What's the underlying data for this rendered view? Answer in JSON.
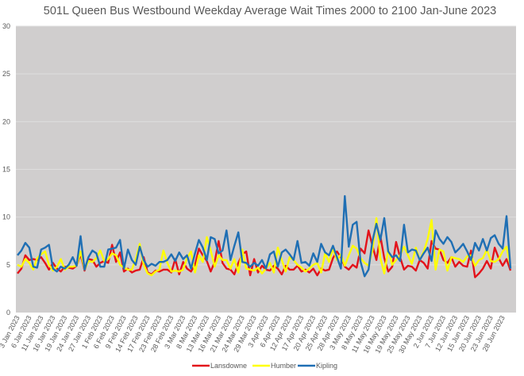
{
  "chart_data": {
    "type": "line",
    "title": "501L Queen Bus Westbound Weekday Average Wait Times 2000 to 2100 Jan-June 2023",
    "xlabel": "",
    "ylabel": "",
    "ylim": [
      0,
      30
    ],
    "yticks": [
      "0",
      "5",
      "10",
      "15",
      "20",
      "25",
      "30"
    ],
    "grid": true,
    "legend": "bottom",
    "label_every": 3,
    "x_tick_labels": [
      "3 Jan 2023",
      "6 Jan 2023",
      "11 Jan 2023",
      "16 Jan 2023",
      "19 Jan 2023",
      "24 Jan 2023",
      "27 Jan 2023",
      "1 Feb 2023",
      "6 Feb 2023",
      "9 Feb 2023",
      "14 Feb 2023",
      "17 Feb 2023",
      "23 Feb 2023",
      "28 Feb 2023",
      "3 Mar 2023",
      "8 Mar 2023",
      "13 Mar 2023",
      "16 Mar 2023",
      "21 Mar 2023",
      "24 Mar 2023",
      "29 Mar 2023",
      "3 Apr 2023",
      "6 Apr 2023",
      "12 Apr 2023",
      "17 Apr 2023",
      "20 Apr 2023",
      "25 Apr 2023",
      "28 Apr 2023",
      "3 May 2023",
      "8 May 2023",
      "11 May 2023",
      "16 May 2023",
      "19 May 2023",
      "25 May 2023",
      "30 May 2023",
      "2 Jun 2023",
      "7 Jun 2023",
      "12 Jun 2023",
      "15 Jun 2023",
      "20 Jun 2023",
      "23 Jun 2023",
      "28 Jun 2023"
    ],
    "series": [
      {
        "name": "Lansdowne",
        "color": "#e3131b",
        "values": [
          4.1,
          4.6,
          6.0,
          5.5,
          5.6,
          5.5,
          5.8,
          5.2,
          4.5,
          5.2,
          4.6,
          4.3,
          4.8,
          4.7,
          4.6,
          4.9,
          6.1,
          4.4,
          5.6,
          5.5,
          4.8,
          5.2,
          5.4,
          5.2,
          7.1,
          5.3,
          6.3,
          4.3,
          4.6,
          4.2,
          4.4,
          4.5,
          5.8,
          4.2,
          4.0,
          4.4,
          4.3,
          4.5,
          4.5,
          4.2,
          5.6,
          4.0,
          5.3,
          4.6,
          4.3,
          5.0,
          6.7,
          6.0,
          5.4,
          4.3,
          5.3,
          7.5,
          5.2,
          4.6,
          4.5,
          4.0,
          5.2,
          6.1,
          6.4,
          3.9,
          5.6,
          4.2,
          4.9,
          4.5,
          4.4,
          4.9,
          4.6,
          4.0,
          4.9,
          4.5,
          4.5,
          4.9,
          4.3,
          4.5,
          4.2,
          4.6,
          3.9,
          4.6,
          4.4,
          4.5,
          5.7,
          6.4,
          5.8,
          4.8,
          4.5,
          5.0,
          4.7,
          6.7,
          6.2,
          8.6,
          7.0,
          5.5,
          8.0,
          5.7,
          4.3,
          4.8,
          7.4,
          5.8,
          4.5,
          4.9,
          4.8,
          4.4,
          5.5,
          5.2,
          4.6,
          7.5,
          6.7,
          6.6,
          5.5,
          5.2,
          5.8,
          4.8,
          5.3,
          4.9,
          4.8,
          6.5,
          3.7,
          4.1,
          4.6,
          5.4,
          4.6,
          6.8,
          5.7,
          4.9,
          5.6,
          4.4
        ]
      },
      {
        "name": "Humber",
        "color": "#ffff00",
        "values": [
          5.0,
          4.8,
          5.6,
          5.2,
          4.5,
          5.7,
          6.1,
          6.4,
          5.0,
          4.4,
          4.8,
          5.6,
          4.5,
          4.8,
          4.8,
          4.9,
          6.4,
          4.5,
          5.4,
          5.3,
          5.7,
          6.5,
          5.4,
          5.6,
          6.2,
          6.0,
          5.0,
          4.7,
          4.5,
          4.5,
          5.6,
          7.2,
          5.0,
          4.1,
          3.9,
          4.3,
          4.5,
          6.5,
          5.2,
          4.3,
          4.4,
          4.3,
          4.5,
          5.7,
          6.4,
          4.2,
          6.0,
          5.3,
          7.9,
          6.5,
          4.8,
          6.0,
          5.5,
          5.5,
          4.6,
          5.6,
          4.2,
          6.6,
          4.6,
          4.5,
          4.4,
          4.7,
          4.1,
          4.6,
          5.2,
          4.2,
          6.8,
          5.5,
          4.3,
          5.8,
          5.5,
          5.0,
          4.7,
          4.3,
          4.6,
          5.0,
          5.2,
          4.2,
          6.2,
          5.3,
          6.7,
          5.5,
          6.1,
          4.9,
          6.0,
          7.0,
          6.7,
          5.7,
          5.2,
          4.9,
          6.5,
          9.9,
          5.7,
          4.1,
          6.6,
          5.0,
          5.5,
          6.0,
          6.9,
          6.0,
          5.1,
          6.8,
          5.5,
          6.4,
          7.7,
          9.7,
          4.5,
          6.6,
          6.4,
          4.4,
          5.8,
          5.7,
          5.6,
          5.3,
          5.9,
          6.0,
          4.9,
          5.5,
          5.7,
          6.6,
          5.4,
          5.3,
          5.6,
          6.4,
          6.9,
          4.8
        ]
      },
      {
        "name": "Kipling",
        "color": "#1f6fb4",
        "values": [
          6.0,
          6.5,
          7.3,
          6.8,
          4.8,
          4.7,
          6.6,
          6.8,
          7.1,
          4.6,
          4.3,
          4.8,
          4.6,
          5.0,
          5.8,
          4.9,
          8.0,
          4.5,
          5.8,
          6.5,
          6.2,
          4.8,
          4.8,
          6.6,
          6.7,
          6.8,
          7.6,
          4.6,
          6.6,
          5.5,
          5.0,
          6.9,
          5.5,
          4.8,
          5.1,
          4.9,
          5.3,
          5.3,
          5.5,
          6.1,
          5.4,
          6.3,
          5.6,
          6.0,
          4.6,
          6.2,
          7.6,
          6.8,
          5.5,
          7.9,
          7.7,
          6.2,
          6.5,
          8.6,
          5.5,
          7.0,
          8.4,
          5.3,
          5.2,
          4.8,
          5.2,
          4.9,
          5.5,
          4.6,
          6.1,
          6.4,
          4.8,
          6.3,
          6.6,
          6.1,
          5.5,
          7.5,
          5.2,
          5.3,
          4.9,
          6.2,
          5.3,
          7.2,
          6.3,
          6.0,
          7.0,
          5.8,
          4.6,
          12.2,
          6.9,
          9.2,
          9.5,
          5.3,
          3.8,
          4.5,
          7.5,
          9.3,
          7.6,
          9.9,
          6.4,
          5.8,
          6.0,
          5.4,
          9.2,
          6.3,
          6.6,
          6.5,
          5.5,
          6.2,
          6.8,
          5.4,
          8.6,
          7.7,
          7.2,
          7.9,
          7.4,
          6.3,
          6.7,
          7.2,
          6.4,
          5.5,
          7.3,
          6.5,
          7.7,
          6.5,
          7.8,
          8.1,
          7.2,
          6.7,
          10.1,
          4.6
        ]
      }
    ]
  }
}
